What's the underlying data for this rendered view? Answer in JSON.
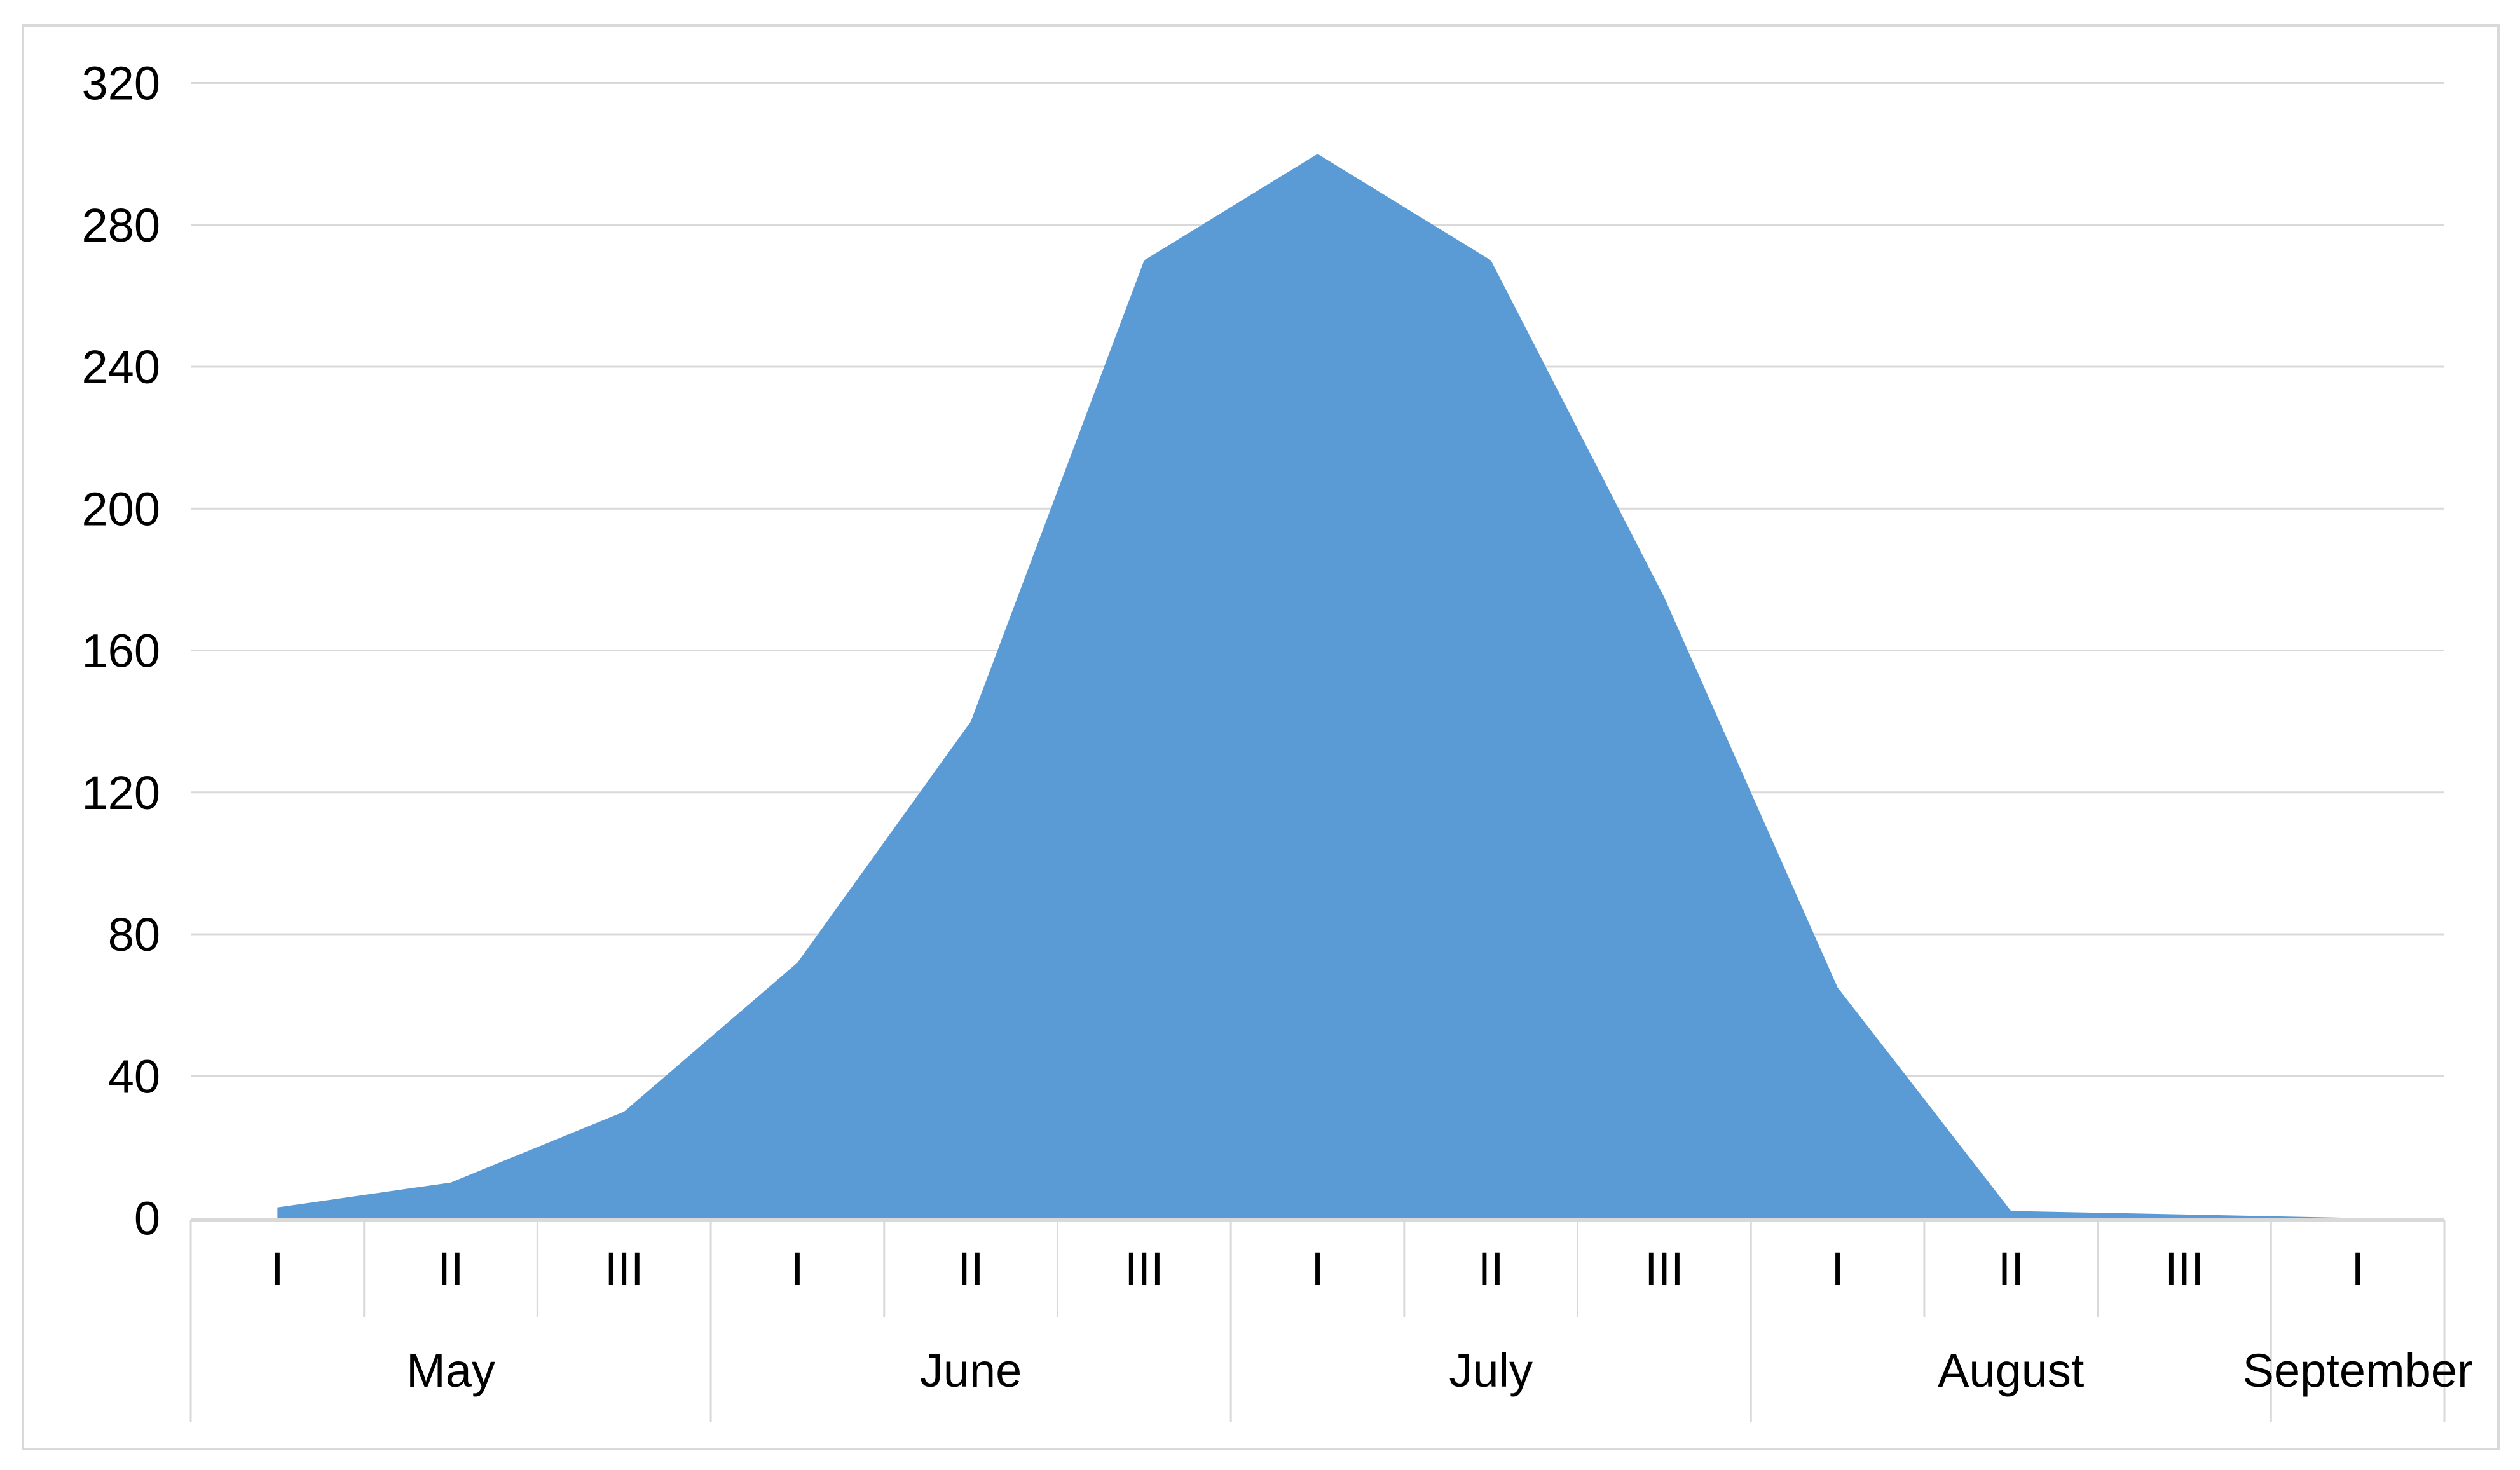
{
  "chart_data": {
    "type": "area",
    "title": "",
    "series_name": "",
    "values": [
      3,
      10,
      30,
      72,
      140,
      270,
      300,
      270,
      175,
      65,
      2,
      1,
      0
    ],
    "decade_labels": [
      "I",
      "II",
      "III",
      "I",
      "II",
      "III",
      "I",
      "II",
      "III",
      "I",
      "II",
      "III",
      "I"
    ],
    "month_groups": [
      {
        "label": "May",
        "span": 3
      },
      {
        "label": "June",
        "span": 3
      },
      {
        "label": "July",
        "span": 3
      },
      {
        "label": "August",
        "span": 3
      },
      {
        "label": "September",
        "span": 1
      }
    ],
    "ytick_labels": [
      "0",
      "40",
      "80",
      "120",
      "160",
      "200",
      "240",
      "280",
      "320"
    ],
    "ylim": [
      0,
      320
    ],
    "ytick_interval": 40,
    "grid": true,
    "legend": false,
    "xlabel": "",
    "ylabel": "",
    "area_color": "#5b9bd5",
    "grid_color": "#d9d9d9",
    "axis_color": "#d9d9d9",
    "border_color": "#d9d9d9",
    "text_color": "#000000",
    "background_color": "#ffffff"
  }
}
